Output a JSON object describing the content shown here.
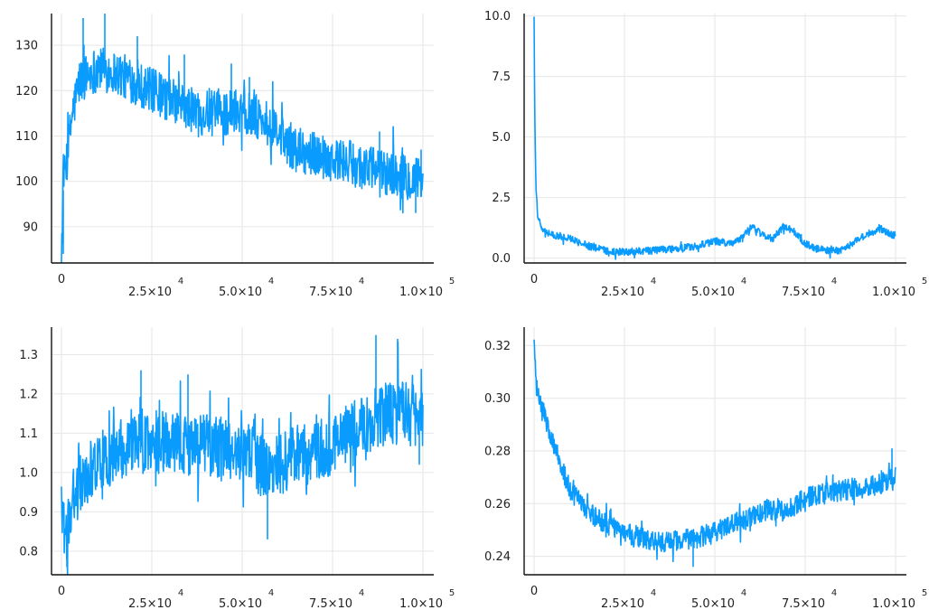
{
  "chart_data": [
    {
      "type": "line",
      "title": "",
      "xlabel": "",
      "ylabel": "",
      "grid": true,
      "legend": "none",
      "color": "#0a9bff",
      "xlim": [
        0,
        100000
      ],
      "ylim": [
        82,
        137
      ],
      "x_ticks": [
        0,
        25000,
        50000,
        75000,
        100000
      ],
      "x_tick_labels": [
        {
          "text": "0",
          "mant": "0",
          "exp": ""
        },
        {
          "text": "2.5×10^4",
          "mant": "2.5×10",
          "exp": "4"
        },
        {
          "text": "5.0×10^4",
          "mant": "5.0×10",
          "exp": "4"
        },
        {
          "text": "7.5×10^4",
          "mant": "7.5×10",
          "exp": "4"
        },
        {
          "text": "1.0×10^5",
          "mant": "1.0×10",
          "exp": "5"
        }
      ],
      "y_ticks": [
        90,
        100,
        110,
        120,
        130
      ],
      "y_tick_labels": [
        "90",
        "100",
        "110",
        "120",
        "130"
      ],
      "series": [
        {
          "x": [
            0,
            500,
            1000,
            2000,
            3000,
            5000,
            8000,
            10000,
            15000,
            20000,
            25000,
            30000,
            35000,
            40000,
            45000,
            50000,
            55000,
            60000,
            65000,
            70000,
            75000,
            80000,
            85000,
            90000,
            95000,
            100000
          ],
          "y": [
            84,
            98,
            102,
            108,
            115,
            122,
            124,
            125,
            124,
            122,
            120,
            118,
            116,
            115,
            115,
            116,
            114,
            110,
            107,
            106,
            105,
            104,
            103,
            102,
            101,
            100
          ],
          "band": 5,
          "spikes": [
            [
              500,
              84
            ],
            [
              6000,
              136
            ],
            [
              12000,
              137
            ],
            [
              21000,
              132
            ],
            [
              34000,
              128
            ],
            [
              47000,
              126
            ],
            [
              52000,
              123
            ],
            [
              88000,
              111
            ],
            [
              98000,
              93
            ],
            [
              99500,
              107
            ]
          ]
        }
      ]
    },
    {
      "type": "line",
      "title": "",
      "xlabel": "",
      "ylabel": "",
      "grid": true,
      "legend": "none",
      "color": "#0a9bff",
      "xlim": [
        0,
        100000
      ],
      "ylim": [
        -0.2,
        10.1
      ],
      "x_ticks": [
        0,
        25000,
        50000,
        75000,
        100000
      ],
      "x_tick_labels": [
        {
          "text": "0",
          "mant": "0",
          "exp": ""
        },
        {
          "text": "2.5×10^4",
          "mant": "2.5×10",
          "exp": "4"
        },
        {
          "text": "5.0×10^4",
          "mant": "5.0×10",
          "exp": "4"
        },
        {
          "text": "7.5×10^4",
          "mant": "7.5×10",
          "exp": "4"
        },
        {
          "text": "1.0×10^5",
          "mant": "1.0×10",
          "exp": "5"
        }
      ],
      "y_ticks": [
        0.0,
        2.5,
        5.0,
        7.5,
        10.0
      ],
      "y_tick_labels": [
        "0.0",
        "2.5",
        "5.0",
        "7.5",
        "10.0"
      ],
      "series": [
        {
          "x": [
            0,
            200,
            500,
            1000,
            2000,
            3000,
            5000,
            8000,
            12000,
            16000,
            20000,
            25000,
            30000,
            35000,
            40000,
            45000,
            50000,
            52000,
            55000,
            58000,
            60000,
            63000,
            66000,
            69000,
            72000,
            75000,
            78000,
            82000,
            86000,
            88000,
            92000,
            96000,
            100000
          ],
          "y": [
            10.0,
            6.0,
            3.0,
            1.8,
            1.2,
            1.1,
            0.95,
            0.9,
            0.7,
            0.45,
            0.3,
            0.25,
            0.3,
            0.35,
            0.4,
            0.5,
            0.7,
            0.65,
            0.6,
            0.9,
            1.3,
            1.0,
            0.8,
            1.3,
            1.1,
            0.6,
            0.4,
            0.3,
            0.35,
            0.6,
            1.0,
            1.2,
            0.9
          ],
          "band": 0.15,
          "spikes": [
            [
              0,
              10.0
            ]
          ]
        }
      ]
    },
    {
      "type": "line",
      "title": "",
      "xlabel": "",
      "ylabel": "",
      "grid": true,
      "legend": "none",
      "color": "#0a9bff",
      "xlim": [
        0,
        100000
      ],
      "ylim": [
        0.74,
        1.37
      ],
      "x_ticks": [
        0,
        25000,
        50000,
        75000,
        100000
      ],
      "x_tick_labels": [
        {
          "text": "0",
          "mant": "0",
          "exp": ""
        },
        {
          "text": "2.5×10^4",
          "mant": "2.5×10",
          "exp": "4"
        },
        {
          "text": "5.0×10^4",
          "mant": "5.0×10",
          "exp": "4"
        },
        {
          "text": "7.5×10^4",
          "mant": "7.5×10",
          "exp": "4"
        },
        {
          "text": "1.0×10^5",
          "mant": "1.0×10",
          "exp": "5"
        }
      ],
      "y_ticks": [
        0.8,
        0.9,
        1.0,
        1.1,
        1.2,
        1.3
      ],
      "y_tick_labels": [
        "0.8",
        "0.9",
        "1.0",
        "1.1",
        "1.2",
        "1.3"
      ],
      "series": [
        {
          "x": [
            0,
            1000,
            2000,
            3000,
            5000,
            8000,
            10000,
            15000,
            20000,
            25000,
            30000,
            35000,
            40000,
            45000,
            50000,
            55000,
            57000,
            60000,
            65000,
            70000,
            75000,
            80000,
            85000,
            90000,
            95000,
            100000
          ],
          "y": [
            0.92,
            0.82,
            0.88,
            0.93,
            0.96,
            1.0,
            1.02,
            1.05,
            1.07,
            1.08,
            1.08,
            1.07,
            1.07,
            1.06,
            1.06,
            1.02,
            1.0,
            1.02,
            1.04,
            1.05,
            1.07,
            1.1,
            1.13,
            1.15,
            1.15,
            1.14
          ],
          "band": 0.08,
          "spikes": [
            [
              1500,
              0.76
            ],
            [
              22000,
              1.26
            ],
            [
              35000,
              1.25
            ],
            [
              57000,
              0.83
            ],
            [
              87000,
              1.35
            ],
            [
              93000,
              1.34
            ],
            [
              99000,
              1.02
            ]
          ]
        }
      ]
    },
    {
      "type": "line",
      "title": "",
      "xlabel": "",
      "ylabel": "",
      "grid": true,
      "legend": "none",
      "color": "#0a9bff",
      "xlim": [
        0,
        100000
      ],
      "ylim": [
        0.233,
        0.327
      ],
      "x_ticks": [
        0,
        25000,
        50000,
        75000,
        100000
      ],
      "x_tick_labels": [
        {
          "text": "0",
          "mant": "0",
          "exp": ""
        },
        {
          "text": "2.5×10^4",
          "mant": "2.5×10",
          "exp": "4"
        },
        {
          "text": "5.0×10^4",
          "mant": "5.0×10",
          "exp": "4"
        },
        {
          "text": "7.5×10^4",
          "mant": "7.5×10",
          "exp": "4"
        },
        {
          "text": "1.0×10^5",
          "mant": "1.0×10",
          "exp": "5"
        }
      ],
      "y_ticks": [
        0.24,
        0.26,
        0.28,
        0.3,
        0.32
      ],
      "y_tick_labels": [
        "0.24",
        "0.26",
        "0.28",
        "0.30",
        "0.32"
      ],
      "series": [
        {
          "x": [
            0,
            500,
            2000,
            5000,
            8000,
            10000,
            15000,
            20000,
            25000,
            30000,
            35000,
            40000,
            45000,
            50000,
            55000,
            60000,
            65000,
            70000,
            75000,
            80000,
            85000,
            90000,
            95000,
            100000
          ],
          "y": [
            0.325,
            0.305,
            0.296,
            0.285,
            0.272,
            0.265,
            0.257,
            0.252,
            0.249,
            0.247,
            0.245,
            0.246,
            0.247,
            0.249,
            0.252,
            0.255,
            0.258,
            0.257,
            0.262,
            0.264,
            0.265,
            0.266,
            0.267,
            0.27
          ],
          "band": 0.004,
          "spikes": [
            [
              0,
              0.325
            ],
            [
              44000,
              0.236
            ],
            [
              99000,
              0.281
            ]
          ]
        }
      ]
    }
  ]
}
